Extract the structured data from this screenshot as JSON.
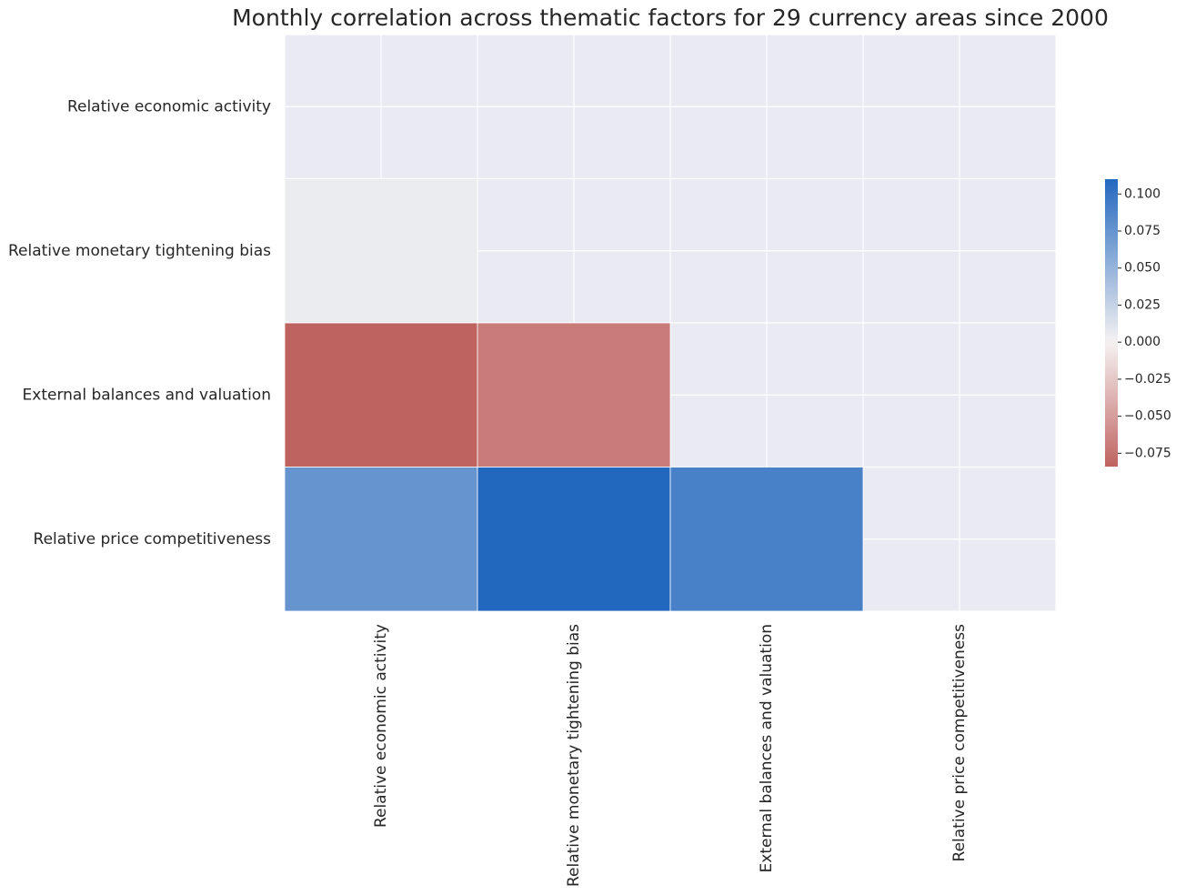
{
  "chart_data": {
    "type": "heatmap",
    "title": "Monthly correlation across thematic factors for 29 currency areas since 2000",
    "x_categories": [
      "Relative economic activity",
      "Relative monetary tightening bias",
      "External balances and valuation",
      "Relative price competitiveness"
    ],
    "y_categories": [
      "Relative economic activity",
      "Relative monetary tightening bias",
      "External balances and valuation",
      "Relative price competitiveness"
    ],
    "values": [
      [
        null,
        null,
        null,
        null
      ],
      [
        0.005,
        null,
        null,
        null
      ],
      [
        -0.084,
        -0.07,
        null,
        null
      ],
      [
        0.075,
        0.11,
        0.09,
        null
      ]
    ],
    "center": 0,
    "colormap": [
      "#bf6360",
      "#f5f2f2",
      "#2368bf"
    ],
    "zlim": [
      -0.084,
      0.11
    ],
    "zticks": [
      {
        "value": 0.1,
        "label": "0.100"
      },
      {
        "value": 0.075,
        "label": "0.075"
      },
      {
        "value": 0.05,
        "label": "0.050"
      },
      {
        "value": 0.025,
        "label": "0.025"
      },
      {
        "value": 0,
        "label": "0.000"
      },
      {
        "value": -0.025,
        "label": "−0.025"
      },
      {
        "value": -0.05,
        "label": "−0.050"
      },
      {
        "value": -0.075,
        "label": "−0.075"
      }
    ],
    "grid": true
  }
}
